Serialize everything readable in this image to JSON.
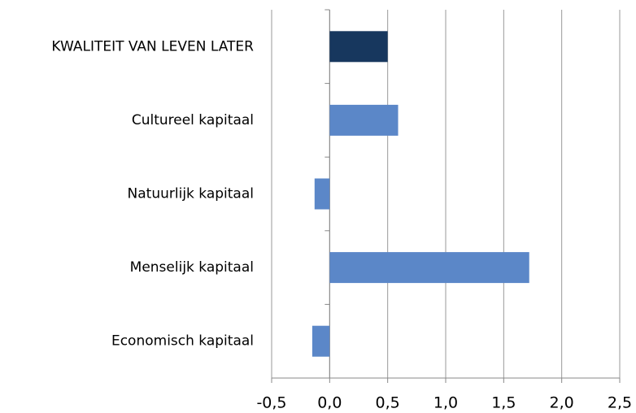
{
  "chart_data": {
    "type": "bar",
    "orientation": "horizontal",
    "categories": [
      "KWALITEIT VAN LEVEN LATER",
      "Cultureel kapitaal",
      "Natuurlijk kapitaal",
      "Menselijk kapitaal",
      "Economisch kapitaal"
    ],
    "values": [
      0.5,
      0.59,
      -0.13,
      1.72,
      -0.15
    ],
    "colors": [
      "#17375e",
      "#5b87c8",
      "#5b87c8",
      "#5b87c8",
      "#5b87c8"
    ],
    "xlim": [
      -0.5,
      2.5
    ],
    "xticks": [
      {
        "value": -0.5,
        "label": "-0,5"
      },
      {
        "value": 0,
        "label": "0,0"
      },
      {
        "value": 0.5,
        "label": "0,5"
      },
      {
        "value": 1,
        "label": "1,0"
      },
      {
        "value": 1.5,
        "label": "1,5"
      },
      {
        "value": 2,
        "label": "2,0"
      },
      {
        "value": 2.5,
        "label": "2,5"
      }
    ],
    "grid": true
  }
}
